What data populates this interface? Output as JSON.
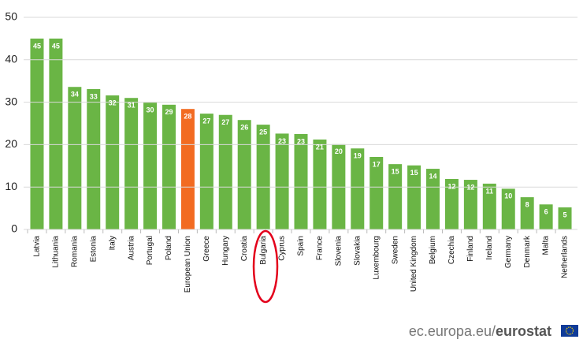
{
  "chart_data": {
    "type": "bar",
    "categories": [
      "Latvia",
      "Lithuania",
      "Romania",
      "Estonia",
      "Italy",
      "Austria",
      "Portugal",
      "Poland",
      "European Union",
      "Greece",
      "Hungary",
      "Croatia",
      "Bulgaria",
      "Cyprus",
      "Spain",
      "France",
      "Slovenia",
      "Slovakia",
      "Luxembourg",
      "Sweden",
      "United Kingdom",
      "Belgium",
      "Czechia",
      "Finland",
      "Ireland",
      "Germany",
      "Denmark",
      "Malta",
      "Netherlands"
    ],
    "values": [
      45,
      45,
      33.6,
      33.1,
      31.6,
      31,
      29.9,
      29.4,
      28.4,
      27.3,
      27,
      25.8,
      24.7,
      22.6,
      22.5,
      21.2,
      20.1,
      19.1,
      17.1,
      15.4,
      15.1,
      14.3,
      11.9,
      11.7,
      10.8,
      9.6,
      7.6,
      5.9,
      5.2
    ],
    "value_labels": [
      "45",
      "45",
      "34",
      "33",
      "32",
      "31",
      "30",
      "29",
      "28",
      "27",
      "27",
      "26",
      "25",
      "23",
      "23",
      "21",
      "20",
      "19",
      "17",
      "15",
      "15",
      "14",
      "12",
      "12",
      "11",
      "10",
      "8",
      "6",
      "5"
    ],
    "colors": [
      "#6ab545",
      "#6ab545",
      "#6ab545",
      "#6ab545",
      "#6ab545",
      "#6ab545",
      "#6ab545",
      "#6ab545",
      "#f26b21",
      "#6ab545",
      "#6ab545",
      "#6ab545",
      "#6ab545",
      "#6ab545",
      "#6ab545",
      "#6ab545",
      "#6ab545",
      "#6ab545",
      "#6ab545",
      "#6ab545",
      "#6ab545",
      "#6ab545",
      "#6ab545",
      "#6ab545",
      "#6ab545",
      "#6ab545",
      "#6ab545",
      "#6ab545",
      "#6ab545"
    ],
    "ylim": [
      0,
      50
    ],
    "yticks": [
      0,
      10,
      20,
      30,
      40,
      50
    ],
    "grid": true
  },
  "source": {
    "site": "ec.europa.eu/",
    "brand": "eurostat"
  }
}
